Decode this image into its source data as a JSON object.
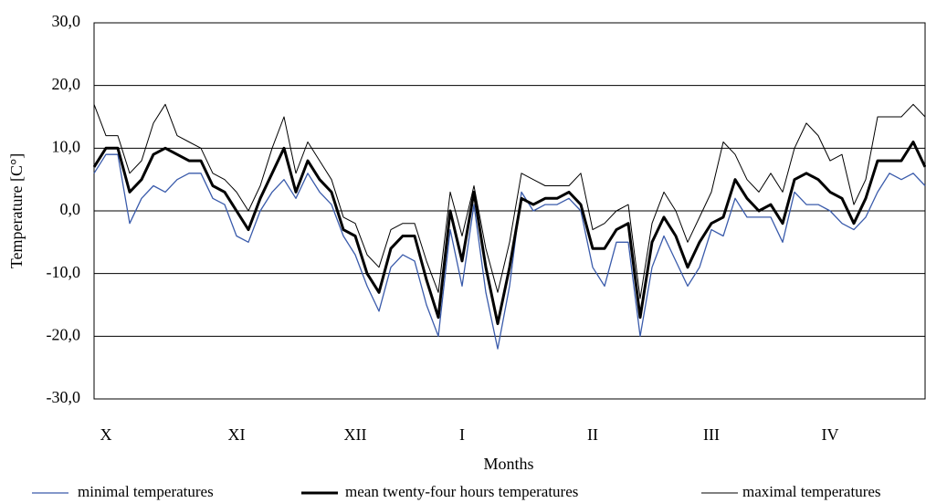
{
  "chart_data": {
    "type": "line",
    "x_label": "Months",
    "y_label": "Temperature [C°]",
    "categories": [
      null,
      "X",
      null,
      null,
      null,
      null,
      null,
      null,
      null,
      null,
      null,
      null,
      "XI",
      null,
      null,
      null,
      null,
      null,
      null,
      null,
      null,
      null,
      "XII",
      null,
      null,
      null,
      null,
      null,
      null,
      null,
      null,
      "I",
      null,
      null,
      null,
      null,
      null,
      null,
      null,
      null,
      null,
      null,
      "II",
      null,
      null,
      null,
      null,
      null,
      null,
      null,
      null,
      null,
      "III",
      null,
      null,
      null,
      null,
      null,
      null,
      null,
      null,
      null,
      "IV",
      null,
      null,
      null,
      null,
      null,
      null,
      null,
      null
    ],
    "series": [
      {
        "name": "minimal temperatures",
        "color": "#3a5bab",
        "width": 1.3,
        "values": [
          6,
          9,
          9,
          -2,
          2,
          4,
          3,
          5,
          6,
          6,
          2,
          1,
          -4,
          -5,
          0,
          3,
          5,
          2,
          6,
          3,
          1,
          -4,
          -7,
          -12,
          -16,
          -9,
          -7,
          -8,
          -15,
          -20,
          -3,
          -12,
          1,
          -13,
          -22,
          -12,
          3,
          0,
          1,
          1,
          2,
          0,
          -9,
          -12,
          -5,
          -5,
          -20,
          -9,
          -4,
          -8,
          -12,
          -9,
          -3,
          -4,
          2,
          -1,
          -1,
          -1,
          -5,
          3,
          1,
          1,
          0,
          -2,
          -3,
          -1,
          3,
          6,
          5,
          6,
          4
        ]
      },
      {
        "name": "mean twenty-four hours temperatures",
        "color": "#000000",
        "width": 3,
        "values": [
          7,
          10,
          10,
          3,
          5,
          9,
          10,
          9,
          8,
          8,
          4,
          3,
          0,
          -3,
          2,
          6,
          10,
          3,
          8,
          5,
          3,
          -3,
          -4,
          -10,
          -13,
          -6,
          -4,
          -4,
          -11,
          -17,
          0,
          -8,
          3,
          -9,
          -18,
          -9,
          2,
          1,
          2,
          2,
          3,
          1,
          -6,
          -6,
          -3,
          -2,
          -17,
          -5,
          -1,
          -4,
          -9,
          -5,
          -2,
          -1,
          5,
          2,
          0,
          1,
          -2,
          5,
          6,
          5,
          3,
          2,
          -2,
          2,
          8,
          8,
          8,
          11,
          7
        ]
      },
      {
        "name": "maximal temperatures",
        "color": "#000000",
        "width": 1,
        "values": [
          17,
          12,
          12,
          6,
          8,
          14,
          17,
          12,
          11,
          10,
          6,
          5,
          3,
          0,
          4,
          10,
          15,
          6,
          11,
          8,
          5,
          -1,
          -2,
          -7,
          -9,
          -3,
          -2,
          -2,
          -8,
          -13,
          3,
          -4,
          4,
          -6,
          -13,
          -5,
          6,
          5,
          4,
          4,
          4,
          6,
          -3,
          -2,
          0,
          1,
          -14,
          -2,
          3,
          0,
          -5,
          -1,
          3,
          11,
          9,
          5,
          3,
          6,
          3,
          10,
          14,
          12,
          8,
          9,
          1,
          5,
          15,
          15,
          15,
          17,
          15
        ]
      }
    ],
    "ylim": [
      -30,
      30
    ],
    "yticks": [
      {
        "value": -30,
        "label": "-30,0"
      },
      {
        "value": -20,
        "label": "-20,0"
      },
      {
        "value": -10,
        "label": "-10,0"
      },
      {
        "value": 0,
        "label": "0,0"
      },
      {
        "value": 10,
        "label": "10,0"
      },
      {
        "value": 20,
        "label": "20,0"
      },
      {
        "value": 30,
        "label": "30,0"
      }
    ],
    "grid": true,
    "legend": "bottom"
  }
}
